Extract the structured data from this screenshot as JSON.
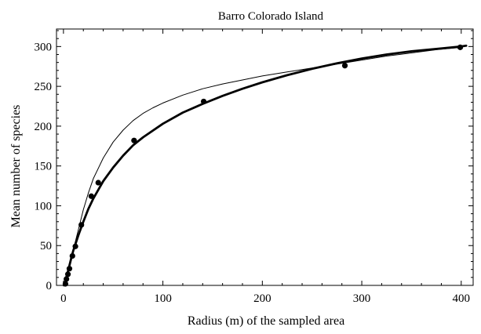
{
  "chart_data": {
    "type": "scatter",
    "title": "Barro Colorado Island",
    "xlabel": "Radius (m) of the sampled area",
    "ylabel": "Mean number of species",
    "xlim": [
      -7,
      412
    ],
    "ylim": [
      0,
      322
    ],
    "xticks": [
      0,
      100,
      200,
      300,
      400
    ],
    "yticks": [
      0,
      50,
      100,
      150,
      200,
      250,
      300
    ],
    "grid": false,
    "legend": "none",
    "series": [
      {
        "type": "scatter",
        "color": "#000000",
        "x": [
          2,
          3,
          4.5,
          6,
          9,
          12,
          18,
          28,
          35,
          71,
          141,
          283,
          399
        ],
        "y": [
          2,
          8,
          14,
          21,
          37,
          49,
          76,
          112,
          129,
          182,
          231,
          276,
          299
        ]
      },
      {
        "type": "line",
        "style": "thick",
        "color": "#000000",
        "x": [
          0.5,
          2,
          4,
          6,
          8,
          10,
          15,
          20,
          25,
          30,
          40,
          50,
          60,
          70,
          80,
          100,
          120,
          140,
          160,
          180,
          200,
          225,
          250,
          275,
          300,
          325,
          350,
          375,
          400,
          405
        ],
        "y": [
          0,
          6,
          15,
          25,
          35,
          44,
          63,
          80,
          96,
          109,
          131,
          148,
          163,
          176,
          186,
          203,
          217,
          228,
          238,
          247,
          255,
          264,
          272,
          279,
          285,
          290,
          294,
          297,
          300,
          301
        ]
      },
      {
        "type": "line",
        "style": "thin",
        "color": "#000000",
        "x": [
          0.5,
          3,
          6,
          10,
          15,
          20,
          25,
          30,
          40,
          50,
          60,
          70,
          80,
          90,
          100,
          120,
          140,
          160,
          180,
          200,
          225,
          250,
          275,
          300,
          325,
          350,
          375,
          400
        ],
        "y": [
          0,
          10,
          24,
          45,
          70,
          95,
          116,
          134,
          160,
          180,
          195,
          207,
          216,
          223,
          229,
          239,
          247,
          253,
          258,
          263,
          268,
          273,
          278,
          283,
          288,
          292,
          296,
          299
        ]
      }
    ]
  }
}
